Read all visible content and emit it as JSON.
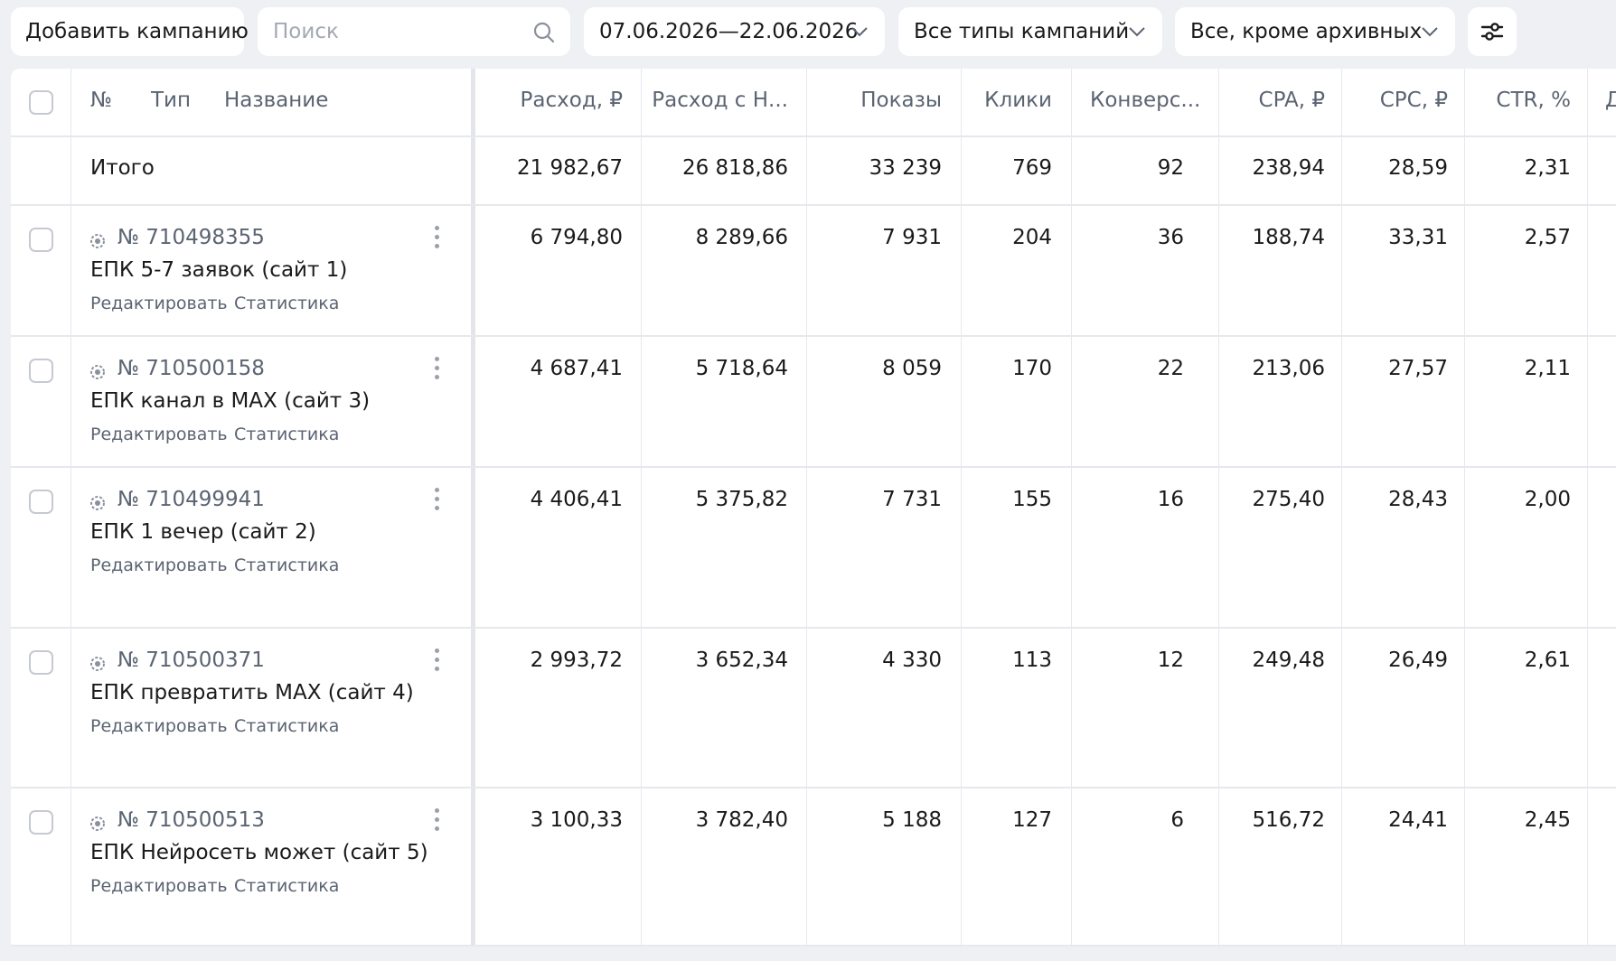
{
  "toolbar": {
    "add_campaign": "Добавить кампанию",
    "search_placeholder": "Поиск",
    "date_range": "07.06.2026—22.06.2026",
    "types_filter": "Все типы кампаний",
    "archive_filter": "Все, кроме архивных"
  },
  "table": {
    "headers": {
      "num": "№",
      "type": "Тип",
      "name": "Название",
      "spend": "Расход, ₽",
      "spend_vat": "Расход с Н...",
      "impressions": "Показы",
      "clicks": "Клики",
      "conversions": "Конверс...",
      "cpa": "CPA, ₽",
      "cpc": "CPC, ₽",
      "ctr": "CTR, %",
      "cut": "Д"
    },
    "total": {
      "label": "Итого",
      "spend": "21 982,67",
      "spend_vat": "26 818,86",
      "impressions": "33 239",
      "clicks": "769",
      "conversions": "92",
      "cpa": "238,94",
      "cpc": "28,59",
      "ctr": "2,31"
    },
    "rows": [
      {
        "num": "№ 710498355",
        "name": "ЕПК 5-7 заявок (сайт 1)",
        "edit": "Редактировать",
        "stats": "Статистика",
        "spend": "6 794,80",
        "spend_vat": "8 289,66",
        "impressions": "7 931",
        "clicks": "204",
        "conversions": "36",
        "cpa": "188,74",
        "cpc": "33,31",
        "ctr": "2,57"
      },
      {
        "num": "№ 710500158",
        "name": "ЕПК канал в MAX (сайт 3)",
        "edit": "Редактировать",
        "stats": "Статистика",
        "spend": "4 687,41",
        "spend_vat": "5 718,64",
        "impressions": "8 059",
        "clicks": "170",
        "conversions": "22",
        "cpa": "213,06",
        "cpc": "27,57",
        "ctr": "2,11"
      },
      {
        "num": "№ 710499941",
        "name": "ЕПК 1 вечер (сайт 2)",
        "edit": "Редактировать",
        "stats": "Статистика",
        "spend": "4 406,41",
        "spend_vat": "5 375,82",
        "impressions": "7 731",
        "clicks": "155",
        "conversions": "16",
        "cpa": "275,40",
        "cpc": "28,43",
        "ctr": "2,00"
      },
      {
        "num": "№ 710500371",
        "name": "ЕПК превратить MAX (сайт 4)",
        "edit": "Редактировать",
        "stats": "Статистика",
        "spend": "2 993,72",
        "spend_vat": "3 652,34",
        "impressions": "4 330",
        "clicks": "113",
        "conversions": "12",
        "cpa": "249,48",
        "cpc": "26,49",
        "ctr": "2,61"
      },
      {
        "num": "№ 710500513",
        "name": "ЕПК Нейросеть может (сайт 5)",
        "edit": "Редактировать",
        "stats": "Статистика",
        "spend": "3 100,33",
        "spend_vat": "3 782,40",
        "impressions": "5 188",
        "clicks": "127",
        "conversions": "6",
        "cpa": "516,72",
        "cpc": "24,41",
        "ctr": "2,45"
      }
    ]
  },
  "icons": {
    "search": "search-icon",
    "chevron": "chevron-down-icon",
    "settings": "filter-settings-icon",
    "campaign_type": "unified-campaign-icon",
    "row_menu": "more-vertical-icon"
  }
}
